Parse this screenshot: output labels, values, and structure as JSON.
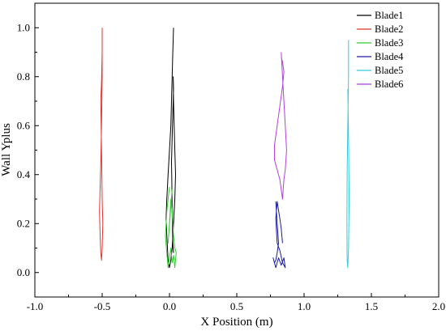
{
  "chart_data": {
    "type": "line",
    "xlabel": "X Position (m)",
    "ylabel": "Wall Yplus",
    "xlim": [
      -1.0,
      2.0
    ],
    "ylim": [
      -0.1,
      1.1
    ],
    "xticks": [
      "-1.0",
      "-0.5",
      "0.0",
      "0.5",
      "1.0",
      "1.5",
      "2.0"
    ],
    "xtick_values": [
      -1.0,
      -0.5,
      0.0,
      0.5,
      1.0,
      1.5,
      2.0
    ],
    "yticks": [
      "0.0",
      "0.2",
      "0.4",
      "0.6",
      "0.8",
      "1.0"
    ],
    "ytick_values": [
      0.0,
      0.2,
      0.4,
      0.6,
      0.8,
      1.0
    ],
    "grid": false,
    "legend_position": "top-right",
    "series": [
      {
        "name": "Blade1",
        "color": "#000000",
        "x": [
          0.03,
          0.025,
          0.02,
          0.015,
          0.01,
          0.0,
          -0.01,
          -0.02,
          -0.025,
          -0.02,
          -0.015,
          -0.01,
          0.0,
          0.01,
          0.02,
          0.03,
          0.04,
          0.045,
          0.04,
          0.035,
          0.03,
          0.028,
          0.03,
          0.025,
          0.02,
          0.015,
          0.018,
          0.02,
          0.022,
          0.025,
          0.03
        ],
        "y": [
          1.0,
          0.9,
          0.8,
          0.7,
          0.6,
          0.5,
          0.4,
          0.3,
          0.22,
          0.15,
          0.1,
          0.05,
          0.02,
          0.05,
          0.1,
          0.2,
          0.3,
          0.4,
          0.5,
          0.6,
          0.7,
          0.8,
          0.75,
          0.65,
          0.55,
          0.45,
          0.35,
          0.25,
          0.18,
          0.12,
          0.08
        ]
      },
      {
        "name": "Blade2",
        "color": "#e3342f",
        "x": [
          -0.5,
          -0.5,
          -0.505,
          -0.51,
          -0.515,
          -0.52,
          -0.515,
          -0.51,
          -0.505,
          -0.5,
          -0.495,
          -0.5,
          -0.505,
          -0.51,
          -0.505,
          -0.5
        ],
        "y": [
          1.0,
          0.8,
          0.6,
          0.45,
          0.35,
          0.25,
          0.15,
          0.08,
          0.05,
          0.1,
          0.2,
          0.3,
          0.5,
          0.7,
          0.78,
          0.9
        ]
      },
      {
        "name": "Blade3",
        "color": "#33cc33",
        "x": [
          0.0,
          -0.01,
          -0.02,
          -0.03,
          -0.02,
          -0.01,
          0.0,
          0.01,
          0.02,
          0.03,
          0.04,
          0.05,
          0.04,
          0.03,
          0.02,
          0.01,
          0.0,
          -0.01,
          0.02,
          0.01
        ],
        "y": [
          0.35,
          0.3,
          0.25,
          0.15,
          0.08,
          0.02,
          0.06,
          0.1,
          0.04,
          0.07,
          0.02,
          0.08,
          0.1,
          0.15,
          0.25,
          0.3,
          0.2,
          0.12,
          0.34,
          0.28
        ]
      },
      {
        "name": "Blade4",
        "color": "#1a1aa6",
        "x": [
          0.79,
          0.8,
          0.81,
          0.8,
          0.79,
          0.78,
          0.77,
          0.79,
          0.81,
          0.83,
          0.85,
          0.86,
          0.84,
          0.82,
          0.8,
          0.79,
          0.8,
          0.82,
          0.83,
          0.84
        ],
        "y": [
          0.29,
          0.2,
          0.12,
          0.08,
          0.05,
          0.04,
          0.06,
          0.02,
          0.06,
          0.03,
          0.06,
          0.02,
          0.04,
          0.09,
          0.12,
          0.22,
          0.29,
          0.22,
          0.18,
          0.12
        ]
      },
      {
        "name": "Blade5",
        "color": "#33ccdd",
        "x": [
          1.33,
          1.33,
          1.325,
          1.32,
          1.318,
          1.32,
          1.325,
          1.33,
          1.335,
          1.33,
          1.325
        ],
        "y": [
          0.95,
          0.8,
          0.6,
          0.4,
          0.2,
          0.05,
          0.02,
          0.1,
          0.3,
          0.55,
          0.75
        ]
      },
      {
        "name": "Blade6",
        "color": "#b040e0",
        "x": [
          0.83,
          0.84,
          0.85,
          0.86,
          0.87,
          0.86,
          0.85,
          0.84,
          0.82,
          0.8,
          0.78,
          0.78,
          0.8,
          0.82,
          0.84,
          0.85,
          0.84,
          0.83
        ],
        "y": [
          0.9,
          0.8,
          0.7,
          0.6,
          0.5,
          0.42,
          0.38,
          0.3,
          0.38,
          0.42,
          0.46,
          0.52,
          0.6,
          0.68,
          0.76,
          0.82,
          0.86,
          0.88
        ]
      }
    ]
  }
}
